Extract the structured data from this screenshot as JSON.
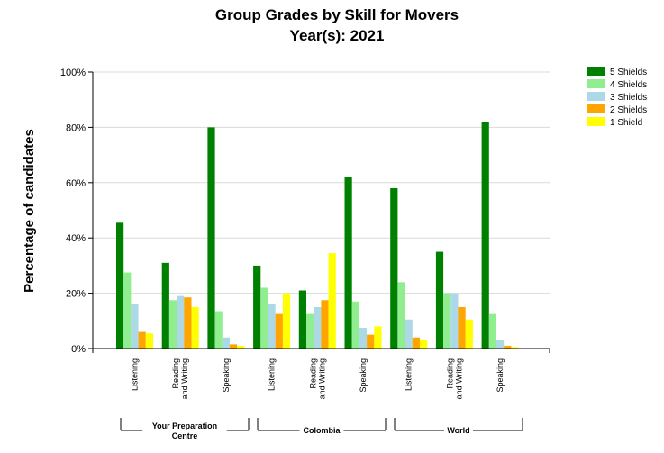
{
  "chart_data": {
    "type": "bar",
    "title_lines": [
      "Group Grades by Skill for Movers",
      "Year(s): 2021"
    ],
    "ylabel": "Percentage of candidates",
    "ylim": [
      0,
      100
    ],
    "yticks": [
      "0%",
      "20%",
      "40%",
      "60%",
      "80%",
      "100%"
    ],
    "ytick_values": [
      0,
      20,
      40,
      60,
      80,
      100
    ],
    "grid": true,
    "legend_position": "top-right",
    "groups": [
      {
        "name_lines": [
          "Your Preparation",
          "Centre"
        ]
      },
      {
        "name_lines": [
          "Colombia"
        ]
      },
      {
        "name_lines": [
          "World"
        ]
      }
    ],
    "categories": [
      {
        "group": 0,
        "lines": [
          "Listening"
        ]
      },
      {
        "group": 0,
        "lines": [
          "Reading",
          "and Writing"
        ]
      },
      {
        "group": 0,
        "lines": [
          "Speaking"
        ]
      },
      {
        "group": 1,
        "lines": [
          "Listening"
        ]
      },
      {
        "group": 1,
        "lines": [
          "Reading",
          "and Writing"
        ]
      },
      {
        "group": 1,
        "lines": [
          "Speaking"
        ]
      },
      {
        "group": 2,
        "lines": [
          "Listening"
        ]
      },
      {
        "group": 2,
        "lines": [
          "Reading",
          "and Writing"
        ]
      },
      {
        "group": 2,
        "lines": [
          "Speaking"
        ]
      }
    ],
    "series": [
      {
        "name": "5 Shields",
        "color": "#008000",
        "values": [
          45.5,
          31.0,
          80.0,
          30.0,
          21.0,
          62.0,
          58.0,
          35.0,
          82.0
        ]
      },
      {
        "name": "4 Shields",
        "color": "#90EE90",
        "values": [
          27.5,
          17.5,
          13.5,
          22.0,
          12.5,
          17.0,
          24.0,
          20.0,
          12.5
        ]
      },
      {
        "name": "3 Shields",
        "color": "#ADD8E6",
        "values": [
          16.0,
          19.0,
          4.0,
          16.0,
          15.0,
          7.5,
          10.5,
          20.0,
          3.0
        ]
      },
      {
        "name": "2 Shields",
        "color": "#FFA500",
        "values": [
          6.0,
          18.5,
          1.5,
          12.5,
          17.5,
          5.0,
          4.0,
          15.0,
          1.0
        ]
      },
      {
        "name": "1 Shield",
        "color": "#FFFF00",
        "values": [
          5.5,
          15.0,
          1.0,
          20.0,
          34.5,
          8.0,
          3.0,
          10.5,
          0.5
        ]
      }
    ]
  }
}
